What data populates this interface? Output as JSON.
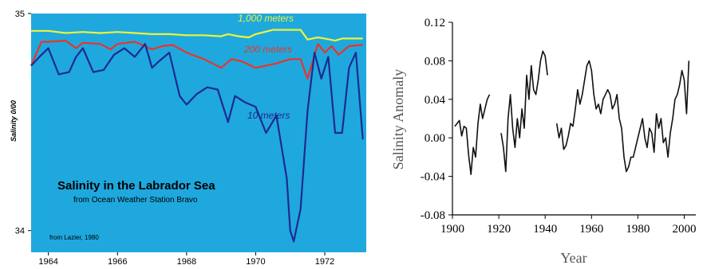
{
  "chart_data": [
    {
      "type": "line",
      "title": "Salinity in the Labrador Sea",
      "subtitle": "from Ocean Weather Station Bravo",
      "source": "from Lazier, 1980",
      "ylabel": "Salinity 0/00",
      "background": "#1fa8de",
      "ylim": [
        33.9,
        35.0
      ],
      "xlim": [
        1963.5,
        1973.2
      ],
      "y_ticks": [
        "34",
        "35"
      ],
      "x_ticks": [
        "1964",
        "1966",
        "1968",
        "1970",
        "1972"
      ],
      "series": [
        {
          "name": "1,000 meters",
          "color": "#eef23a",
          "x": [
            1963.5,
            1964.0,
            1964.5,
            1965.0,
            1965.5,
            1966.0,
            1966.5,
            1967.0,
            1967.5,
            1968.0,
            1968.5,
            1969.0,
            1969.2,
            1969.5,
            1969.8,
            1970.0,
            1970.5,
            1971.0,
            1971.3,
            1971.5,
            1971.8,
            1972.0,
            1972.3,
            1972.5,
            1972.8,
            1973.1
          ],
          "y": [
            34.92,
            34.92,
            34.91,
            34.915,
            34.91,
            34.915,
            34.91,
            34.905,
            34.905,
            34.9,
            34.9,
            34.895,
            34.905,
            34.895,
            34.89,
            34.905,
            34.925,
            34.925,
            34.925,
            34.88,
            34.89,
            34.885,
            34.875,
            34.885,
            34.885,
            34.885
          ]
        },
        {
          "name": "200 meters",
          "color": "#e8352a",
          "x": [
            1963.5,
            1963.8,
            1964.0,
            1964.5,
            1964.8,
            1965.0,
            1965.5,
            1965.8,
            1966.0,
            1966.5,
            1967.0,
            1967.3,
            1967.6,
            1968.0,
            1968.5,
            1969.0,
            1969.3,
            1969.6,
            1970.0,
            1970.3,
            1970.6,
            1971.0,
            1971.3,
            1971.5,
            1971.8,
            1972.0,
            1972.2,
            1972.4,
            1972.7,
            1973.1
          ],
          "y": [
            34.76,
            34.87,
            34.87,
            34.875,
            34.84,
            34.865,
            34.86,
            34.835,
            34.86,
            34.87,
            34.835,
            34.85,
            34.855,
            34.82,
            34.79,
            34.75,
            34.79,
            34.78,
            34.75,
            34.76,
            34.77,
            34.79,
            34.79,
            34.7,
            34.86,
            34.82,
            34.85,
            34.81,
            34.85,
            34.855
          ]
        },
        {
          "name": "10 meters",
          "color": "#1d2a93",
          "x": [
            1963.5,
            1963.8,
            1964.0,
            1964.3,
            1964.6,
            1964.8,
            1965.0,
            1965.3,
            1965.6,
            1965.9,
            1966.2,
            1966.5,
            1966.8,
            1967.0,
            1967.2,
            1967.5,
            1967.8,
            1968.0,
            1968.3,
            1968.6,
            1968.9,
            1969.2,
            1969.4,
            1969.7,
            1970.0,
            1970.3,
            1970.6,
            1970.9,
            1971.0,
            1971.1,
            1971.3,
            1971.5,
            1971.7,
            1971.9,
            1972.1,
            1972.3,
            1972.5,
            1972.7,
            1972.9,
            1973.1
          ],
          "y": [
            34.76,
            34.81,
            34.84,
            34.72,
            34.73,
            34.8,
            34.84,
            34.73,
            34.74,
            34.81,
            34.84,
            34.8,
            34.86,
            34.75,
            34.78,
            34.82,
            34.62,
            34.58,
            34.63,
            34.66,
            34.65,
            34.5,
            34.62,
            34.59,
            34.57,
            34.45,
            34.53,
            34.24,
            34.0,
            33.95,
            34.1,
            34.55,
            34.82,
            34.7,
            34.8,
            34.45,
            34.45,
            34.75,
            34.82,
            34.42
          ]
        }
      ]
    },
    {
      "type": "line",
      "xlabel": "Year",
      "ylabel": "Salinity Anomaly",
      "xlim": [
        1900,
        2005
      ],
      "ylim": [
        -0.08,
        0.12
      ],
      "x_ticks": [
        "1900",
        "1920",
        "1940",
        "1960",
        "1980",
        "2000"
      ],
      "y_ticks": [
        "-0.08",
        "-0.04",
        "0.00",
        "0.04",
        "0.08",
        "0.12"
      ],
      "series": [
        {
          "color": "#111111",
          "segments": [
            {
              "x": [
                1901,
                1902,
                1903,
                1904,
                1905,
                1906,
                1907,
                1908,
                1909,
                1910,
                1911,
                1912,
                1913,
                1914,
                1915,
                1916
              ],
              "y": [
                0.012,
                0.015,
                0.018,
                0.002,
                0.012,
                0.01,
                -0.018,
                -0.038,
                -0.01,
                -0.02,
                0.015,
                0.035,
                0.02,
                0.03,
                0.04,
                0.045
              ]
            },
            {
              "x": [
                1921,
                1922,
                1923,
                1924,
                1925,
                1926,
                1927,
                1928,
                1929,
                1930,
                1931,
                1932,
                1933,
                1934,
                1935,
                1936,
                1937,
                1938,
                1939,
                1940,
                1941
              ],
              "y": [
                0.005,
                -0.01,
                -0.035,
                0.02,
                0.045,
                0.01,
                -0.01,
                0.02,
                0.0,
                0.03,
                0.01,
                0.065,
                0.04,
                0.075,
                0.05,
                0.045,
                0.06,
                0.08,
                0.09,
                0.085,
                0.065
              ]
            },
            {
              "x": [
                1945,
                1946,
                1947,
                1948,
                1949,
                1950,
                1951,
                1952,
                1953,
                1954,
                1955,
                1956,
                1957,
                1958,
                1959,
                1960,
                1961,
                1962,
                1963,
                1964,
                1965,
                1966,
                1967,
                1968,
                1969,
                1970,
                1971,
                1972,
                1973,
                1974,
                1975,
                1976,
                1977,
                1978,
                1979,
                1980,
                1981,
                1982,
                1983,
                1984,
                1985,
                1986,
                1987,
                1988,
                1989,
                1990,
                1991,
                1992,
                1993,
                1994,
                1995,
                1996,
                1997,
                1998,
                1999,
                2000,
                2001,
                2002
              ],
              "y": [
                0.015,
                0.0,
                0.01,
                -0.012,
                -0.008,
                0.002,
                0.015,
                0.012,
                0.03,
                0.05,
                0.035,
                0.045,
                0.06,
                0.075,
                0.08,
                0.07,
                0.045,
                0.03,
                0.035,
                0.025,
                0.04,
                0.045,
                0.05,
                0.045,
                0.03,
                0.035,
                0.045,
                0.02,
                0.01,
                -0.02,
                -0.035,
                -0.03,
                -0.02,
                -0.02,
                -0.01,
                0.0,
                0.01,
                0.02,
                0.0,
                -0.01,
                0.01,
                0.005,
                -0.015,
                0.025,
                0.01,
                0.02,
                -0.005,
                0.0,
                -0.02,
                0.005,
                0.02,
                0.04,
                0.045,
                0.055,
                0.07,
                0.06,
                0.025,
                0.08
              ]
            }
          ]
        }
      ]
    }
  ]
}
